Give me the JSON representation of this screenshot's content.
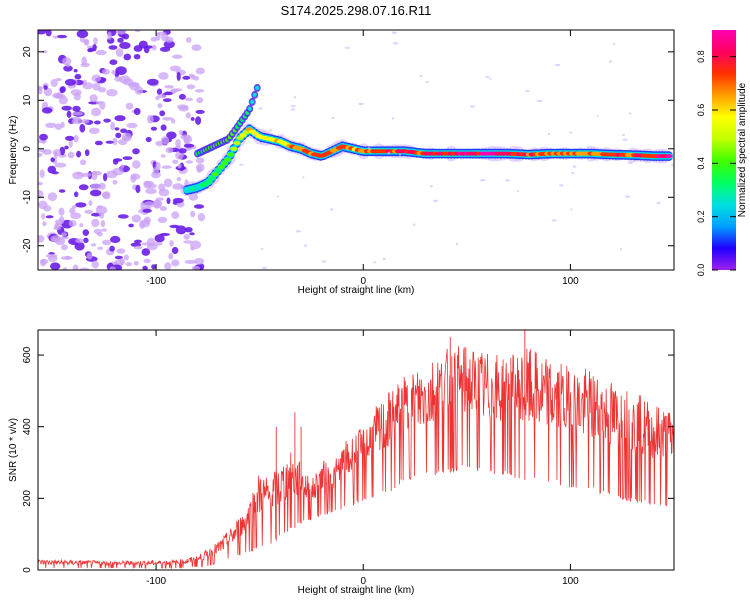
{
  "figure_title": "S174.2025.298.07.16.R11",
  "chart_data": [
    {
      "type": "heatmap",
      "title": "S174.2025.298.07.16.R11",
      "xlabel": "Height of straight line (km)",
      "ylabel": "Frequency (Hz)",
      "xlim": [
        -157,
        150
      ],
      "ylim": [
        -25,
        24.5
      ],
      "xticks": [
        -100,
        0,
        100
      ],
      "yticks": [
        -20,
        -10,
        0,
        10,
        20
      ],
      "x_tick_labels": [
        "-100",
        "0",
        "100"
      ],
      "y_tick_labels": [
        "-20",
        "-10",
        "0",
        "10",
        "20"
      ],
      "colorbar": {
        "label": "Normalized spectral amplitude",
        "range": [
          0.0,
          0.9
        ],
        "ticks": [
          0.0,
          0.2,
          0.4,
          0.6,
          0.8
        ],
        "tick_labels": [
          "0.0",
          "0.2",
          "0.4",
          "0.6",
          "0.8"
        ],
        "colormap": [
          "#a020f0",
          "#2000ff",
          "#00a0ff",
          "#00e0e0",
          "#00ff60",
          "#40ff00",
          "#c0ff00",
          "#ffff00",
          "#ffa000",
          "#ff3000",
          "#ff0060",
          "#ff00b0"
        ]
      },
      "noise_region_x": [
        -157,
        -78
      ],
      "ridge": {
        "x": [
          -85,
          -80,
          -75,
          -70,
          -65,
          -60,
          -55,
          -50,
          -45,
          -40,
          -35,
          -30,
          -25,
          -20,
          -15,
          -10,
          -5,
          0,
          10,
          20,
          30,
          40,
          50,
          60,
          70,
          80,
          90,
          100,
          110,
          120,
          130,
          140,
          148
        ],
        "frequency": [
          -8.5,
          -8,
          -7,
          -4.5,
          -2,
          2,
          4,
          2.5,
          2,
          1.5,
          0.5,
          0,
          -1,
          -1.5,
          -0.5,
          0.5,
          0,
          -0.5,
          -0.5,
          -0.5,
          -1,
          -1,
          -1,
          -1,
          -1,
          -1.2,
          -1,
          -1,
          -1,
          -1.2,
          -1.3,
          -1.5,
          -1.5
        ],
        "amplitude": [
          0.3,
          0.3,
          0.35,
          0.4,
          0.45,
          0.5,
          0.6,
          0.65,
          0.62,
          0.6,
          0.65,
          0.7,
          0.72,
          0.75,
          0.7,
          0.72,
          0.68,
          0.7,
          0.75,
          0.8,
          0.78,
          0.8,
          0.82,
          0.85,
          0.82,
          0.75,
          0.7,
          0.72,
          0.7,
          0.72,
          0.75,
          0.8,
          0.85
        ]
      },
      "secondary_branch": {
        "x": [
          -80,
          -75,
          -70,
          -65,
          -60,
          -55,
          -50
        ],
        "frequency": [
          -1,
          0,
          1,
          2,
          5,
          8,
          14
        ],
        "amplitude": [
          0.35,
          0.4,
          0.4,
          0.45,
          0.35,
          0.3,
          0.25
        ]
      }
    },
    {
      "type": "line",
      "xlabel": "Height of straight line (km)",
      "ylabel": "SNR (10 * v/v)",
      "xlim": [
        -157,
        150
      ],
      "ylim": [
        0,
        670
      ],
      "xticks": [
        -100,
        0,
        100
      ],
      "yticks": [
        0,
        200,
        400,
        600
      ],
      "x_tick_labels": [
        "-100",
        "0",
        "100"
      ],
      "y_tick_labels": [
        "0",
        "200",
        "400",
        "600"
      ],
      "series": [
        {
          "name": "SNR",
          "color": "#ee3333",
          "envelope_x": [
            -157,
            -120,
            -90,
            -80,
            -75,
            -70,
            -65,
            -60,
            -55,
            -50,
            -45,
            -40,
            -35,
            -30,
            -25,
            -20,
            -15,
            -10,
            -5,
            0,
            5,
            10,
            15,
            20,
            30,
            40,
            50,
            60,
            70,
            80,
            90,
            100,
            110,
            120,
            130,
            140,
            150
          ],
          "envelope_max": [
            30,
            25,
            28,
            40,
            60,
            80,
            110,
            150,
            200,
            280,
            260,
            300,
            330,
            300,
            250,
            310,
            290,
            350,
            380,
            400,
            450,
            480,
            520,
            540,
            590,
            620,
            630,
            610,
            600,
            620,
            590,
            570,
            560,
            530,
            500,
            470,
            450
          ],
          "envelope_min": [
            5,
            5,
            5,
            8,
            10,
            20,
            30,
            40,
            50,
            60,
            70,
            90,
            110,
            130,
            140,
            150,
            160,
            170,
            180,
            190,
            200,
            210,
            220,
            250,
            260,
            270,
            280,
            270,
            260,
            250,
            240,
            230,
            220,
            200,
            190,
            180,
            170
          ],
          "spikes": [
            {
              "x": -42,
              "y": 400
            },
            {
              "x": -33,
              "y": 440
            },
            {
              "x": -30,
              "y": 400
            },
            {
              "x": 78,
              "y": 670
            },
            {
              "x": 42,
              "y": 650
            }
          ]
        }
      ]
    }
  ]
}
